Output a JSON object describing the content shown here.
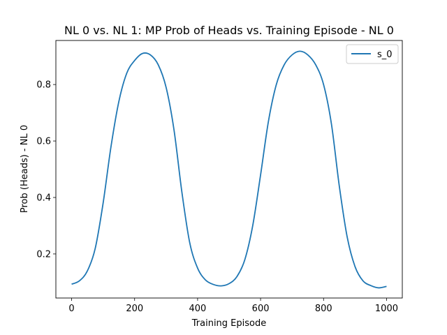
{
  "chart_data": {
    "type": "line",
    "title": "NL 0 vs. NL 1: MP Prob of Heads vs. Training Episode - NL 0",
    "xlabel": "Training Episode",
    "ylabel": "Prob (Heads) - NL 0",
    "xlim": [
      -50,
      1050
    ],
    "ylim": [
      0.044,
      0.956
    ],
    "xticks": [
      0,
      200,
      400,
      600,
      800,
      1000
    ],
    "yticks": [
      0.2,
      0.4,
      0.6,
      0.8
    ],
    "ytick_labels": [
      "0.2",
      "0.4",
      "0.6",
      "0.8"
    ],
    "legend": {
      "placement": "top-right"
    },
    "grid": false,
    "series": [
      {
        "name": "s_0",
        "color": "#1f77b4",
        "x": [
          0,
          25,
          50,
          75,
          100,
          125,
          150,
          175,
          200,
          225,
          250,
          275,
          300,
          325,
          350,
          375,
          400,
          425,
          450,
          475,
          500,
          525,
          550,
          575,
          600,
          625,
          650,
          675,
          700,
          725,
          750,
          775,
          800,
          825,
          850,
          875,
          900,
          925,
          950,
          975,
          1000
        ],
        "y": [
          0.093,
          0.105,
          0.14,
          0.22,
          0.38,
          0.58,
          0.74,
          0.84,
          0.885,
          0.91,
          0.905,
          0.87,
          0.79,
          0.64,
          0.42,
          0.24,
          0.15,
          0.108,
          0.092,
          0.087,
          0.095,
          0.12,
          0.18,
          0.3,
          0.48,
          0.67,
          0.8,
          0.87,
          0.905,
          0.918,
          0.905,
          0.87,
          0.8,
          0.66,
          0.44,
          0.26,
          0.155,
          0.105,
          0.088,
          0.08,
          0.085
        ]
      }
    ]
  }
}
